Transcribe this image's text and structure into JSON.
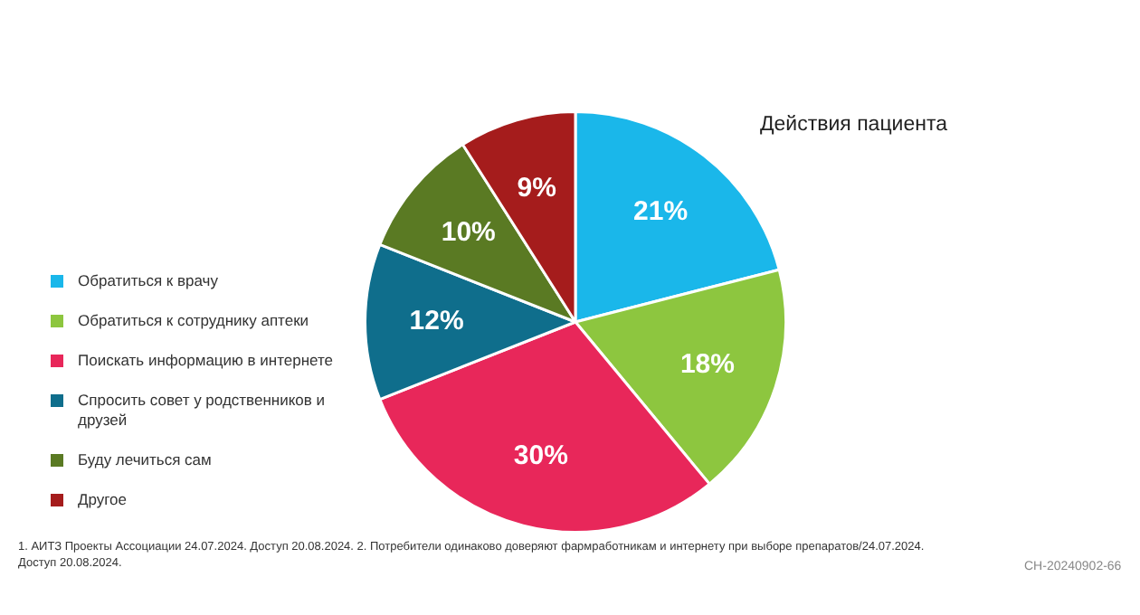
{
  "chart_data": {
    "type": "pie",
    "title": "Действия пациента",
    "categories": [
      "Обратиться к врачу",
      "Обратиться к сотруднику аптеки",
      "Поискать информацию в интернете",
      "Спросить совет у родственников и друзей",
      "Буду лечиться сам",
      "Другое"
    ],
    "values": [
      21,
      18,
      30,
      12,
      10,
      9
    ],
    "colors": [
      "#1ab7ea",
      "#8dc63f",
      "#e8275a",
      "#0f6e8c",
      "#5a7a23",
      "#a51c1c"
    ],
    "value_labels": [
      "21%",
      "18%",
      "30%",
      "12%",
      "10%",
      "9%"
    ],
    "legend": "left",
    "annotations": [
      "1. АИТЗ Проекты Ассоциации 24.07.2024. Доступ 20.08.2024. 2. Потребители одинаково доверяют фармработникам и интернету при выборе препаратов/24.07.2024. Доступ 20.08.2024.",
      "CH-20240902-66"
    ]
  }
}
